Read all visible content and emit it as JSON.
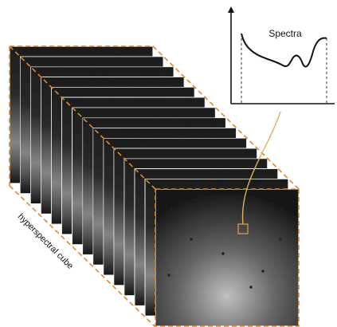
{
  "spectra_panel": {
    "title": "Spectra"
  },
  "cube": {
    "label": "hyperspectral cube"
  }
}
